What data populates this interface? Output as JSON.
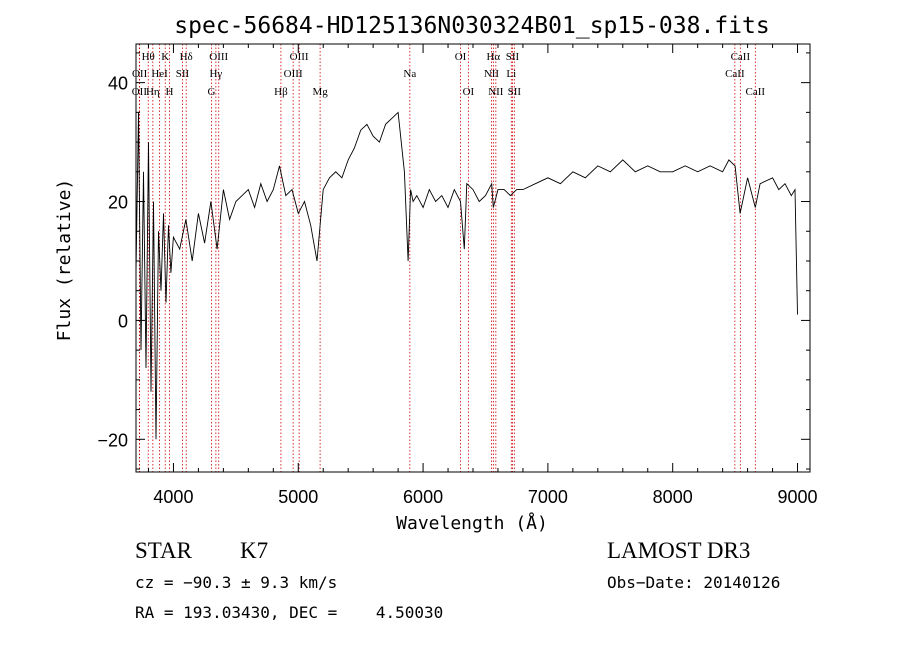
{
  "chart_data": {
    "type": "line",
    "title": "spec-56684-HD125136N030324B01_sp15-038.fits",
    "xlabel": "Wavelength (Å)",
    "ylabel": "Flux (relative)",
    "xlim": [
      3700,
      9100
    ],
    "ylim": [
      -25.5,
      46.5
    ],
    "xticks": [
      4000,
      5000,
      6000,
      7000,
      8000,
      9000
    ],
    "yticks": [
      -20,
      0,
      20,
      40
    ],
    "grid": false,
    "series": [
      {
        "x": [
          3700,
          3720,
          3740,
          3760,
          3780,
          3800,
          3820,
          3840,
          3860,
          3880,
          3900,
          3920,
          3940,
          3960,
          3980,
          4000,
          4050,
          4100,
          4150,
          4200,
          4250,
          4300,
          4350,
          4400,
          4450,
          4500,
          4550,
          4600,
          4650,
          4700,
          4750,
          4800,
          4850,
          4900,
          4950,
          5000,
          5050,
          5100,
          5150,
          5200,
          5250,
          5300,
          5350,
          5400,
          5450,
          5500,
          5550,
          5600,
          5650,
          5700,
          5750,
          5800,
          5850,
          5880,
          5900,
          5920,
          5950,
          6000,
          6050,
          6100,
          6150,
          6200,
          6250,
          6300,
          6330,
          6350,
          6400,
          6450,
          6500,
          6550,
          6563,
          6600,
          6650,
          6700,
          6750,
          6800,
          6900,
          7000,
          7100,
          7200,
          7300,
          7400,
          7500,
          7600,
          7700,
          7800,
          7900,
          8000,
          8100,
          8200,
          8300,
          8400,
          8450,
          8500,
          8540,
          8600,
          8662,
          8700,
          8800,
          8850,
          8900,
          8950,
          8980,
          9000
        ],
        "y": [
          8,
          35,
          -5,
          25,
          -8,
          30,
          -12,
          20,
          -20,
          15,
          5,
          18,
          3,
          16,
          8,
          14,
          12,
          17,
          10,
          18,
          13,
          20,
          12,
          22,
          17,
          20,
          21,
          22,
          19,
          23,
          20,
          22,
          26,
          21,
          22,
          18,
          20,
          16,
          10,
          22,
          24,
          25,
          24,
          27,
          29,
          32,
          33,
          31,
          30,
          33,
          34,
          35,
          25,
          10,
          22,
          20,
          21,
          19,
          22,
          20,
          21,
          19,
          22,
          20,
          12,
          23,
          22,
          20,
          21,
          23,
          19,
          22,
          22,
          21,
          22,
          22,
          23,
          24,
          23,
          25,
          24,
          26,
          25,
          27,
          25,
          26,
          25,
          25,
          26,
          25,
          26,
          25,
          27,
          26,
          18,
          24,
          19,
          23,
          24,
          22,
          23,
          21,
          22,
          1
        ]
      }
    ],
    "lines": [
      {
        "label": "OII",
        "x": 3727,
        "row": 3
      },
      {
        "label": "OII",
        "x": 3729,
        "row": 2
      },
      {
        "label": "Hθ",
        "x": 3798,
        "row": 1
      },
      {
        "label": "Hη",
        "x": 3835,
        "row": 3
      },
      {
        "label": "HeI",
        "x": 3889,
        "row": 2
      },
      {
        "label": "K",
        "x": 3934,
        "row": 1
      },
      {
        "label": "H",
        "x": 3968,
        "row": 3
      },
      {
        "label": "SII",
        "x": 4072,
        "row": 2
      },
      {
        "label": "Hδ",
        "x": 4102,
        "row": 1
      },
      {
        "label": "G",
        "x": 4305,
        "row": 3
      },
      {
        "label": "Hγ",
        "x": 4340,
        "row": 2
      },
      {
        "label": "OIII",
        "x": 4363,
        "row": 1
      },
      {
        "label": "Hβ",
        "x": 4861,
        "row": 3
      },
      {
        "label": "OIII",
        "x": 4959,
        "row": 2
      },
      {
        "label": "OIII",
        "x": 5007,
        "row": 1
      },
      {
        "label": "Mg",
        "x": 5175,
        "row": 3
      },
      {
        "label": "Na",
        "x": 5894,
        "row": 2
      },
      {
        "label": "OI",
        "x": 6300,
        "row": 1
      },
      {
        "label": "OI",
        "x": 6363,
        "row": 3
      },
      {
        "label": "NII",
        "x": 6548,
        "row": 2
      },
      {
        "label": "Hα",
        "x": 6563,
        "row": 1
      },
      {
        "label": "NII",
        "x": 6583,
        "row": 3
      },
      {
        "label": "Li",
        "x": 6707,
        "row": 2
      },
      {
        "label": "SII",
        "x": 6716,
        "row": 1
      },
      {
        "label": "SII",
        "x": 6731,
        "row": 3
      },
      {
        "label": "CaII",
        "x": 8498,
        "row": 2
      },
      {
        "label": "CaII",
        "x": 8542,
        "row": 1
      },
      {
        "label": "CaII",
        "x": 8662,
        "row": 3
      }
    ],
    "line_color": "#cc0000"
  },
  "info": {
    "object_class": "STAR",
    "subclass": "K7",
    "survey": "LAMOST DR3",
    "cz": "cz = −90.3 ± 9.3 km/s",
    "obs_date": "Obs−Date: 20140126",
    "radec": "RA = 193.03430, DEC =    4.50030"
  }
}
